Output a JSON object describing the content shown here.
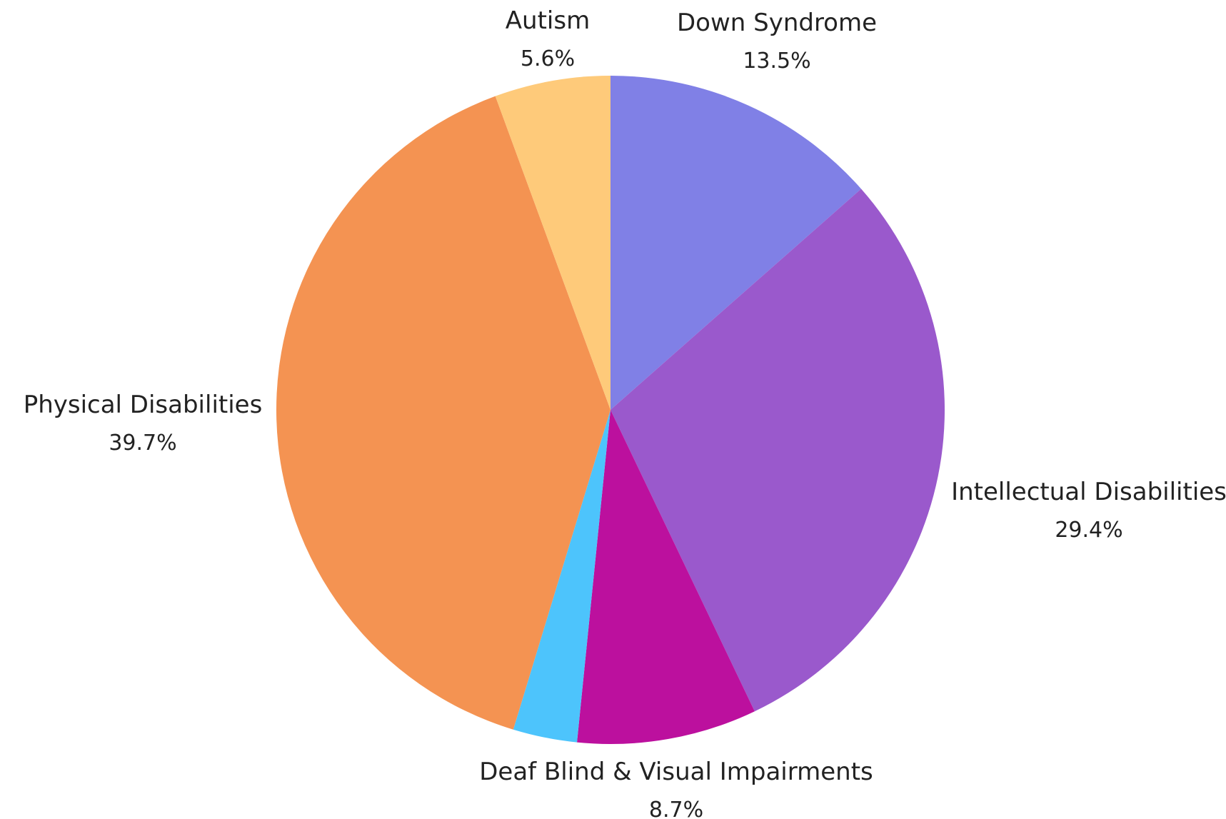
{
  "chart_data": {
    "type": "pie",
    "title": "",
    "slices": [
      {
        "label": "Down Syndrome",
        "value": 13.5,
        "display": "13.5%",
        "color": "#8080E6"
      },
      {
        "label": "Intellectual Disabilities",
        "value": 29.4,
        "display": "29.4%",
        "color": "#9A59CC"
      },
      {
        "label": "Deaf Blind & Visual Impairments",
        "value": 8.7,
        "display": "8.7%",
        "color": "#BC109E"
      },
      {
        "label": "",
        "value": 3.1,
        "display": "",
        "color": "#4DC4FC"
      },
      {
        "label": "Physical Disabilities",
        "value": 39.7,
        "display": "39.7%",
        "color": "#F49352"
      },
      {
        "label": "Autism",
        "value": 5.6,
        "display": "5.6%",
        "color": "#FECA7A"
      }
    ],
    "start_angle": "12 o'clock",
    "direction": "clockwise",
    "legend": "none"
  }
}
